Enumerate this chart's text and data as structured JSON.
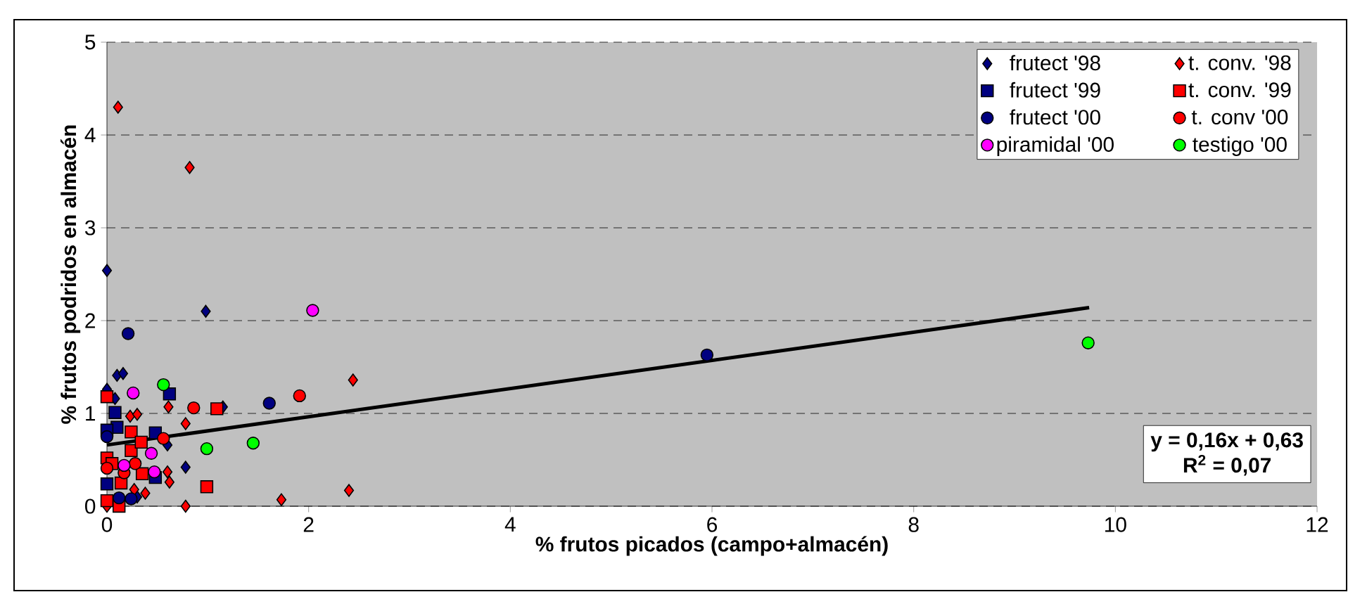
{
  "chart_data": {
    "type": "scatter",
    "xlabel": "% frutos picados (campo+almacén)",
    "ylabel": "% frutos podridos en almacén",
    "xlim": [
      0,
      12
    ],
    "ylim": [
      0,
      5
    ],
    "xticks": [
      0,
      2,
      4,
      6,
      8,
      10,
      12
    ],
    "yticks": [
      0,
      1,
      2,
      3,
      4,
      5
    ],
    "grid": "y",
    "legend": "top right",
    "annotations": [
      "y = 0,16x + 0,63",
      "R$^{2}$ = 0,07"
    ],
    "series": [
      {
        "name": "frutect '98",
        "color": "#000080",
        "marker": "diamond",
        "x": [
          0,
          0.98,
          0.1,
          0.16,
          0,
          0.08,
          1.15,
          0.6,
          0.78,
          0.3
        ],
        "values": [
          2.54,
          2.1,
          1.41,
          1.43,
          1.26,
          1.16,
          1.07,
          0.66,
          0.42,
          0.1
        ]
      },
      {
        "name": "t. conv. '98",
        "color": "#ff0000",
        "marker": "diamond",
        "x": [
          0.11,
          0.82,
          2.44,
          0.61,
          0.78,
          0.23,
          0.3,
          0.6,
          0.62,
          0.27,
          0.38,
          0.78,
          1.73,
          2.4,
          0
        ],
        "values": [
          4.3,
          3.65,
          1.36,
          1.07,
          0.89,
          0.97,
          0.99,
          0.37,
          0.26,
          0.18,
          0.14,
          0,
          0.07,
          0.17,
          0
        ]
      },
      {
        "name": "frutect '99",
        "color": "#000080",
        "marker": "square",
        "x": [
          0.62,
          0.08,
          0.1,
          0,
          0.48,
          0,
          0.48
        ],
        "values": [
          1.21,
          1.01,
          0.85,
          0.82,
          0.79,
          0.24,
          0.31
        ]
      },
      {
        "name": "t. conv. '99",
        "color": "#ff0000",
        "marker": "square",
        "x": [
          0,
          1.09,
          0.24,
          0.24,
          0.34,
          0,
          0.05,
          0.35,
          0.14,
          0,
          0.12,
          0.99
        ],
        "values": [
          1.18,
          1.05,
          0.8,
          0.6,
          0.69,
          0.52,
          0.46,
          0.35,
          0.25,
          0.06,
          0,
          0.21
        ]
      },
      {
        "name": "frutect '00",
        "color": "#000080",
        "marker": "circle",
        "x": [
          0.21,
          1.61,
          5.95,
          0,
          0.12,
          0.24
        ],
        "values": [
          1.86,
          1.11,
          1.63,
          0.75,
          0.09,
          0.08
        ]
      },
      {
        "name": "t. conv '00",
        "color": "#ff0000",
        "marker": "circle",
        "x": [
          0.86,
          1.91,
          0.56,
          0.17,
          0.28,
          0
        ],
        "values": [
          1.06,
          1.19,
          0.73,
          0.36,
          0.46,
          0.41
        ]
      },
      {
        "name": "piramidal '00",
        "color": "#ff00ff",
        "marker": "circle",
        "x": [
          2.04,
          0.26,
          0.44,
          0.17,
          0.47
        ],
        "values": [
          2.11,
          1.22,
          0.57,
          0.44,
          0.37
        ]
      },
      {
        "name": "testigo '00",
        "color": "#00ff00",
        "marker": "circle",
        "x": [
          0.56,
          0.99,
          1.45,
          9.73
        ],
        "values": [
          1.31,
          0.62,
          0.68,
          1.76
        ]
      },
      {
        "type": "line",
        "color": "#000000",
        "marker": "none",
        "x": [
          0,
          9.74
        ],
        "values": [
          0.66,
          2.14
        ]
      }
    ]
  }
}
